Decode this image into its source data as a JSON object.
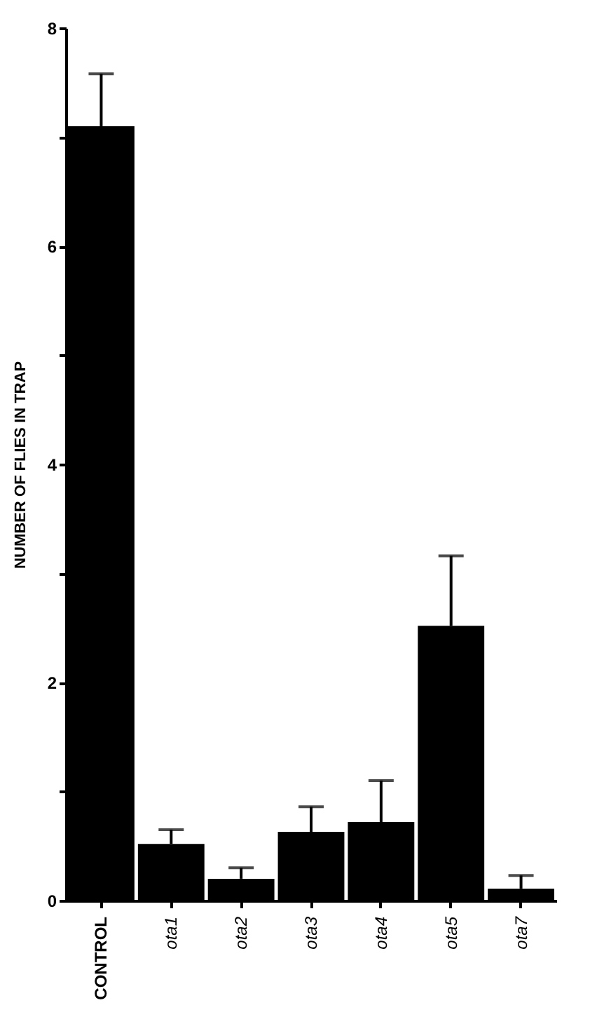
{
  "chart_data": {
    "type": "bar",
    "ylabel": "NUMBER OF FLIES IN TRAP",
    "categories": [
      "CONTROL",
      "ota1",
      "ota2",
      "ota3",
      "ota4",
      "ota5",
      "ota7"
    ],
    "values": [
      7.1,
      0.52,
      0.2,
      0.63,
      0.72,
      2.52,
      0.11
    ],
    "errors": [
      [
        7.1,
        7.58
      ],
      [
        0.52,
        0.65
      ],
      [
        0.2,
        0.3
      ],
      [
        0.63,
        0.86
      ],
      [
        0.72,
        1.1
      ],
      [
        2.52,
        3.16
      ],
      [
        0.11,
        0.23
      ]
    ],
    "color": "#000000",
    "ylim": [
      0,
      8
    ],
    "yticks": [
      0,
      {
        "value": 1,
        "label": null
      },
      2,
      {
        "value": 3,
        "label": null
      },
      4,
      {
        "value": 5,
        "label": null
      },
      6,
      {
        "value": 7,
        "label": null
      },
      8
    ],
    "grid": false
  }
}
